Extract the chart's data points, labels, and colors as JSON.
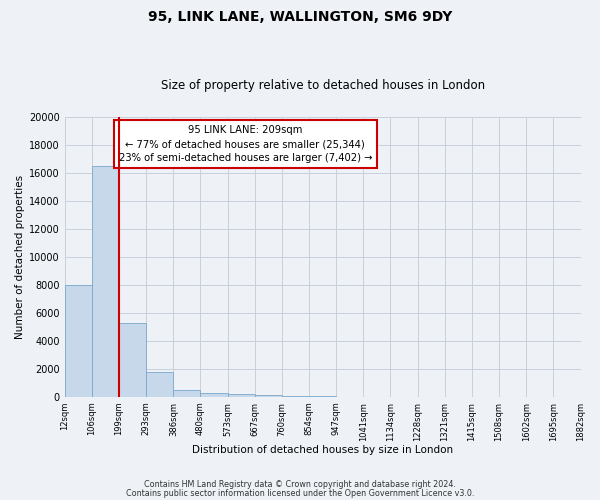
{
  "title": "95, LINK LANE, WALLINGTON, SM6 9DY",
  "subtitle": "Size of property relative to detached houses in London",
  "xlabel": "Distribution of detached houses by size in London",
  "ylabel": "Number of detached properties",
  "bar_values": [
    8000,
    16500,
    5300,
    1750,
    500,
    300,
    200,
    100,
    50,
    50,
    0,
    0,
    0,
    0,
    0,
    0,
    0,
    0,
    0
  ],
  "bin_labels": [
    "12sqm",
    "106sqm",
    "199sqm",
    "293sqm",
    "386sqm",
    "480sqm",
    "573sqm",
    "667sqm",
    "760sqm",
    "854sqm",
    "947sqm",
    "1041sqm",
    "1134sqm",
    "1228sqm",
    "1321sqm",
    "1415sqm",
    "1508sqm",
    "1602sqm",
    "1695sqm",
    "1882sqm"
  ],
  "bar_color": "#c8d8eb",
  "bar_edge_color": "#7aa8cc",
  "property_line_x": 2.0,
  "property_line_color": "#cc0000",
  "annotation_title": "95 LINK LANE: 209sqm",
  "annotation_line1": "← 77% of detached houses are smaller (25,344)",
  "annotation_line2": "23% of semi-detached houses are larger (7,402) →",
  "ylim": [
    0,
    20000
  ],
  "yticks": [
    0,
    2000,
    4000,
    6000,
    8000,
    10000,
    12000,
    14000,
    16000,
    18000,
    20000
  ],
  "footnote1": "Contains HM Land Registry data © Crown copyright and database right 2024.",
  "footnote2": "Contains public sector information licensed under the Open Government Licence v3.0.",
  "bg_color": "#eef2f7",
  "plot_bg_color": "#eef2f7",
  "grid_color": "#c8d0dc"
}
